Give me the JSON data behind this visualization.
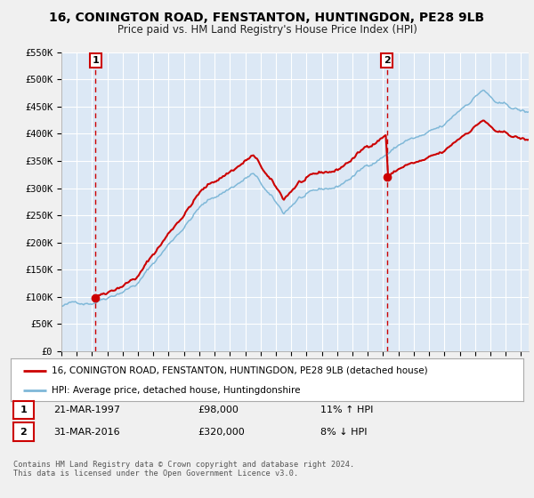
{
  "title": "16, CONINGTON ROAD, FENSTANTON, HUNTINGDON, PE28 9LB",
  "subtitle": "Price paid vs. HM Land Registry's House Price Index (HPI)",
  "legend_line1": "16, CONINGTON ROAD, FENSTANTON, HUNTINGDON, PE28 9LB (detached house)",
  "legend_line2": "HPI: Average price, detached house, Huntingdonshire",
  "sale1_date": "21-MAR-1997",
  "sale1_price": "£98,000",
  "sale1_hpi": "11% ↑ HPI",
  "sale2_date": "31-MAR-2016",
  "sale2_price": "£320,000",
  "sale2_hpi": "8% ↓ HPI",
  "sale1_year": 1997.22,
  "sale1_value": 98000,
  "sale2_year": 2016.25,
  "sale2_value": 320000,
  "hpi_color": "#7fb8d8",
  "price_color": "#cc0000",
  "vline_color": "#cc0000",
  "dot_color": "#cc0000",
  "plot_bg_color": "#dce8f5",
  "fig_bg_color": "#f0f0f0",
  "grid_color": "#ffffff",
  "footer_text": "Contains HM Land Registry data © Crown copyright and database right 2024.\nThis data is licensed under the Open Government Licence v3.0.",
  "ylim": [
    0,
    550000
  ],
  "yticks": [
    0,
    50000,
    100000,
    150000,
    200000,
    250000,
    300000,
    350000,
    400000,
    450000,
    500000,
    550000
  ],
  "ytick_labels": [
    "£0",
    "£50K",
    "£100K",
    "£150K",
    "£200K",
    "£250K",
    "£300K",
    "£350K",
    "£400K",
    "£450K",
    "£500K",
    "£550K"
  ],
  "xlim_start": 1995.0,
  "xlim_end": 2025.5,
  "xticks": [
    1995,
    1996,
    1997,
    1998,
    1999,
    2000,
    2001,
    2002,
    2003,
    2004,
    2005,
    2006,
    2007,
    2008,
    2009,
    2010,
    2011,
    2012,
    2013,
    2014,
    2015,
    2016,
    2017,
    2018,
    2019,
    2020,
    2021,
    2022,
    2023,
    2024,
    2025
  ]
}
